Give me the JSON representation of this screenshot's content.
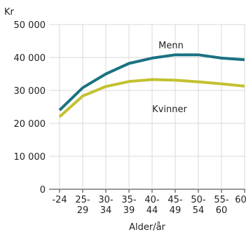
{
  "chart_data": {
    "type": "line",
    "ylabel": "Kr",
    "xlabel": "Alder/år",
    "ylim": [
      0,
      50000
    ],
    "yticks": [
      0,
      10000,
      20000,
      30000,
      40000,
      50000
    ],
    "ytick_labels": [
      "0",
      "10 000",
      "20 000",
      "30 000",
      "40 000",
      "50 000"
    ],
    "grid": true,
    "categories": [
      {
        "line1": "-24",
        "line2": ""
      },
      {
        "line1": "25-",
        "line2": "29"
      },
      {
        "line1": "30-",
        "line2": "34"
      },
      {
        "line1": "35-",
        "line2": "39"
      },
      {
        "line1": "40-",
        "line2": "44"
      },
      {
        "line1": "45-",
        "line2": "49"
      },
      {
        "line1": "50-",
        "line2": "54"
      },
      {
        "line1": "55-",
        "line2": "60"
      },
      {
        "line1": "60+",
        "line2": ""
      }
    ],
    "series": [
      {
        "name": "Menn",
        "color": "#1a7282",
        "values": [
          24000,
          30800,
          35000,
          38200,
          39800,
          40800,
          40800,
          39800,
          39300
        ]
      },
      {
        "name": "Kvinner",
        "color": "#c3c130",
        "values": [
          22000,
          28300,
          31200,
          32700,
          33300,
          33100,
          32600,
          32000,
          31300
        ]
      }
    ]
  }
}
